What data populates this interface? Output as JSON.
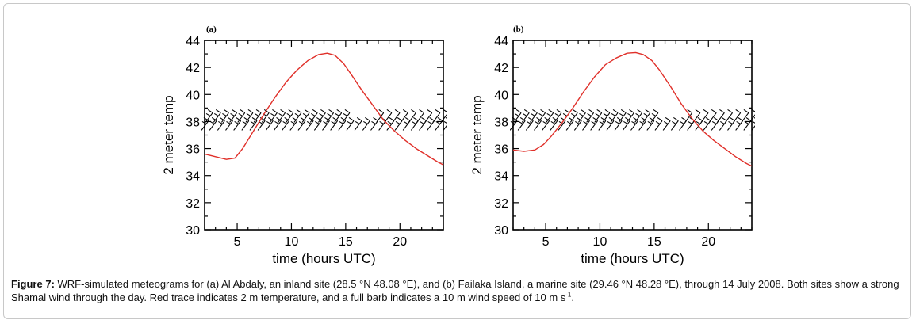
{
  "chart_data": [
    {
      "type": "line",
      "panel_label": "(a)",
      "xlabel": "time (hours UTC)",
      "ylabel": "2 meter temp",
      "xlim": [
        2,
        24
      ],
      "ylim": [
        30,
        44
      ],
      "xticks": [
        5,
        10,
        15,
        20
      ],
      "yticks": [
        30,
        32,
        34,
        36,
        38,
        40,
        42,
        44
      ],
      "series": [
        {
          "color": "#e0302a",
          "x": [
            2,
            3,
            4,
            4.8,
            5.5,
            6.5,
            7.5,
            8.5,
            9.5,
            10.5,
            11.5,
            12.5,
            13.3,
            14,
            14.8,
            15.5,
            16.5,
            17.5,
            18.5,
            19.5,
            20.5,
            21.5,
            22.5,
            23.5,
            24
          ],
          "y": [
            35.6,
            35.4,
            35.2,
            35.3,
            36.0,
            37.3,
            38.6,
            39.8,
            40.9,
            41.8,
            42.5,
            42.95,
            43.05,
            42.9,
            42.3,
            41.5,
            40.3,
            39.2,
            38.1,
            37.3,
            36.6,
            36.0,
            35.5,
            35.0,
            34.8
          ]
        }
      ],
      "wind_barbs": {
        "level": 38,
        "count": 60,
        "description": "full barbs = 10 m/s"
      }
    },
    {
      "type": "line",
      "panel_label": "(b)",
      "xlabel": "time (hours UTC)",
      "ylabel": "2 meter temp",
      "xlim": [
        2,
        24
      ],
      "ylim": [
        30,
        44
      ],
      "xticks": [
        5,
        10,
        15,
        20
      ],
      "yticks": [
        30,
        32,
        34,
        36,
        38,
        40,
        42,
        44
      ],
      "series": [
        {
          "color": "#e0302a",
          "x": [
            2,
            3,
            4,
            4.8,
            5.5,
            6.5,
            7.5,
            8.5,
            9.5,
            10.5,
            11.5,
            12.5,
            13.3,
            14,
            14.8,
            15.5,
            16.5,
            17.5,
            18.5,
            19.5,
            20.5,
            21.5,
            22.5,
            23.5,
            24
          ],
          "y": [
            35.9,
            35.8,
            35.9,
            36.3,
            36.9,
            37.9,
            39.0,
            40.2,
            41.3,
            42.2,
            42.7,
            43.05,
            43.1,
            42.95,
            42.5,
            41.8,
            40.6,
            39.3,
            38.2,
            37.3,
            36.6,
            36.0,
            35.4,
            34.9,
            34.7
          ]
        }
      ],
      "wind_barbs": {
        "level": 38,
        "count": 60,
        "description": "full barbs = 10 m/s"
      }
    }
  ],
  "caption": {
    "label": "Figure 7:",
    "text": " WRF-simulated meteograms for (a) Al Abdaly, an inland site (28.5 °N 48.08 °E), and (b) Failaka Island, a marine site (29.46 °N 48.28 °E), through 14 July 2008. Both sites show a strong Shamal wind through the day. Red trace indicates 2 m temperature, and a full barb indicates a 10 m wind speed of 10 m s",
    "superscript": "-1",
    "end": "."
  }
}
